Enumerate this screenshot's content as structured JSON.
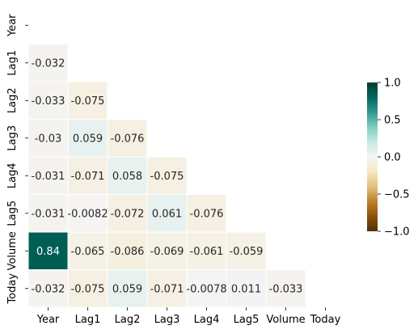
{
  "chart_data": {
    "type": "heatmap",
    "title": "",
    "xlabel": "",
    "ylabel": "",
    "mask": "upper-triangle-including-diagonal",
    "row_labels": [
      "Year",
      "Lag1",
      "Lag2",
      "Lag3",
      "Lag4",
      "Lag5",
      "Volume",
      "Today"
    ],
    "col_labels": [
      "Year",
      "Lag1",
      "Lag2",
      "Lag3",
      "Lag4",
      "Lag5",
      "Volume",
      "Today"
    ],
    "cells": [
      {
        "row": 1,
        "col": 0,
        "value": -0.032,
        "label": "-0.032"
      },
      {
        "row": 2,
        "col": 0,
        "value": -0.033,
        "label": "-0.033"
      },
      {
        "row": 2,
        "col": 1,
        "value": -0.075,
        "label": "-0.075"
      },
      {
        "row": 3,
        "col": 0,
        "value": -0.03,
        "label": "-0.03"
      },
      {
        "row": 3,
        "col": 1,
        "value": 0.059,
        "label": "0.059"
      },
      {
        "row": 3,
        "col": 2,
        "value": -0.076,
        "label": "-0.076"
      },
      {
        "row": 4,
        "col": 0,
        "value": -0.031,
        "label": "-0.031"
      },
      {
        "row": 4,
        "col": 1,
        "value": -0.071,
        "label": "-0.071"
      },
      {
        "row": 4,
        "col": 2,
        "value": 0.058,
        "label": "0.058"
      },
      {
        "row": 4,
        "col": 3,
        "value": -0.075,
        "label": "-0.075"
      },
      {
        "row": 5,
        "col": 0,
        "value": -0.031,
        "label": "-0.031"
      },
      {
        "row": 5,
        "col": 1,
        "value": -0.0082,
        "label": "-0.0082"
      },
      {
        "row": 5,
        "col": 2,
        "value": -0.072,
        "label": "-0.072"
      },
      {
        "row": 5,
        "col": 3,
        "value": 0.061,
        "label": "0.061"
      },
      {
        "row": 5,
        "col": 4,
        "value": -0.076,
        "label": "-0.076"
      },
      {
        "row": 6,
        "col": 0,
        "value": 0.84,
        "label": "0.84"
      },
      {
        "row": 6,
        "col": 1,
        "value": -0.065,
        "label": "-0.065"
      },
      {
        "row": 6,
        "col": 2,
        "value": -0.086,
        "label": "-0.086"
      },
      {
        "row": 6,
        "col": 3,
        "value": -0.069,
        "label": "-0.069"
      },
      {
        "row": 6,
        "col": 4,
        "value": -0.061,
        "label": "-0.061"
      },
      {
        "row": 6,
        "col": 5,
        "value": -0.059,
        "label": "-0.059"
      },
      {
        "row": 7,
        "col": 0,
        "value": -0.032,
        "label": "-0.032"
      },
      {
        "row": 7,
        "col": 1,
        "value": -0.075,
        "label": "-0.075"
      },
      {
        "row": 7,
        "col": 2,
        "value": 0.059,
        "label": "0.059"
      },
      {
        "row": 7,
        "col": 3,
        "value": -0.071,
        "label": "-0.071"
      },
      {
        "row": 7,
        "col": 4,
        "value": -0.0078,
        "label": "-0.0078"
      },
      {
        "row": 7,
        "col": 5,
        "value": 0.011,
        "label": "0.011"
      },
      {
        "row": 7,
        "col": 6,
        "value": -0.033,
        "label": "-0.033"
      }
    ],
    "colorbar": {
      "range": [
        -1.0,
        1.0
      ],
      "ticks": [
        1.0,
        0.5,
        0.0,
        -0.5,
        -1.0
      ],
      "tick_labels": [
        "1.0",
        "0.5",
        "0.0",
        "−0.5",
        "−1.0"
      ],
      "colormap": "BrBG",
      "stops": [
        "#543005",
        "#8c510a",
        "#bf812d",
        "#dfc27d",
        "#f6e8c3",
        "#f5f5f5",
        "#c7eae5",
        "#80cdc1",
        "#35978f",
        "#01665e",
        "#003c30"
      ]
    },
    "cell_text_colors": {
      "dark_bg": "#ffffff",
      "light_bg": "#262626"
    }
  }
}
